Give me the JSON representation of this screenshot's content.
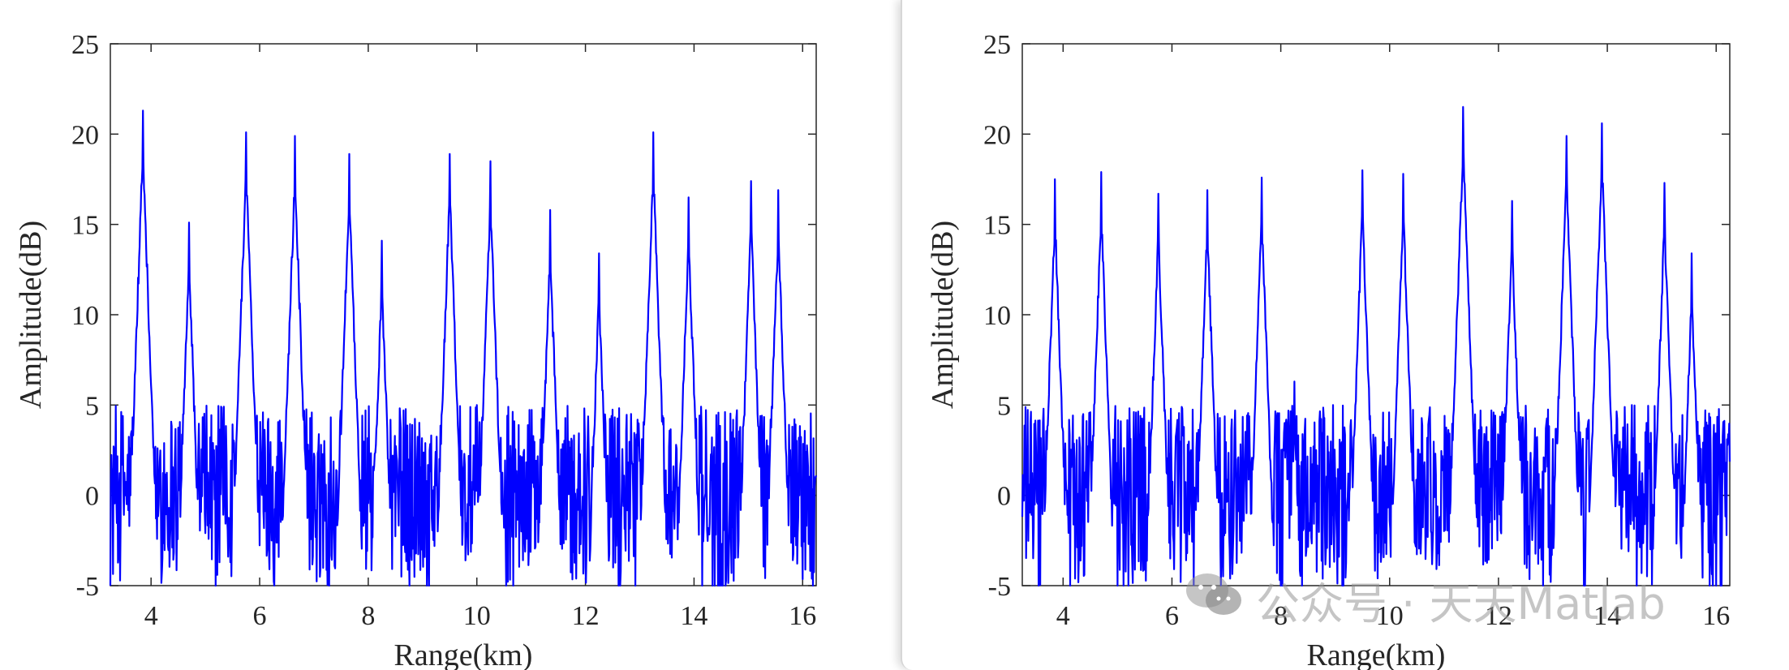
{
  "colors": {
    "line": "#0000ff",
    "axis": "#262626",
    "panel_border": "#d6d6d6"
  },
  "watermark": {
    "text": "公众号 · 天天Matlab",
    "icon": "wechat-icon"
  },
  "chart_data": [
    {
      "type": "line",
      "xlabel": "Range(km)",
      "ylabel": "Amplitude(dB)",
      "xlim": [
        3.25,
        16.25
      ],
      "ylim": [
        -5,
        25
      ],
      "xticks": [
        4,
        6,
        8,
        10,
        12,
        14,
        16
      ],
      "yticks": [
        -5,
        0,
        5,
        10,
        15,
        20,
        25
      ],
      "grid": false,
      "series": [
        {
          "noise_floor_db": [
            -5,
            5
          ],
          "peaks": [
            {
              "x": 3.85,
              "y": 21.3
            },
            {
              "x": 4.7,
              "y": 15.1
            },
            {
              "x": 5.75,
              "y": 20.1
            },
            {
              "x": 6.65,
              "y": 19.9
            },
            {
              "x": 7.65,
              "y": 18.9
            },
            {
              "x": 8.25,
              "y": 14.1
            },
            {
              "x": 9.5,
              "y": 18.9
            },
            {
              "x": 10.25,
              "y": 18.5
            },
            {
              "x": 11.35,
              "y": 15.8
            },
            {
              "x": 12.25,
              "y": 13.4
            },
            {
              "x": 13.25,
              "y": 20.1
            },
            {
              "x": 13.9,
              "y": 16.5
            },
            {
              "x": 15.05,
              "y": 17.4
            },
            {
              "x": 15.55,
              "y": 16.9
            }
          ]
        }
      ]
    },
    {
      "type": "line",
      "xlabel": "Range(km)",
      "ylabel": "Amplitude(dB)",
      "xlim": [
        3.25,
        16.25
      ],
      "ylim": [
        -5,
        25
      ],
      "xticks": [
        4,
        6,
        8,
        10,
        12,
        14,
        16
      ],
      "yticks": [
        -5,
        0,
        5,
        10,
        15,
        20,
        25
      ],
      "grid": false,
      "series": [
        {
          "noise_floor_db": [
            -5,
            5
          ],
          "peaks": [
            {
              "x": 3.85,
              "y": 17.5
            },
            {
              "x": 4.7,
              "y": 17.9
            },
            {
              "x": 5.75,
              "y": 16.7
            },
            {
              "x": 6.65,
              "y": 16.9
            },
            {
              "x": 7.65,
              "y": 17.6
            },
            {
              "x": 8.25,
              "y": 6.3
            },
            {
              "x": 9.5,
              "y": 18.0
            },
            {
              "x": 10.25,
              "y": 17.8
            },
            {
              "x": 11.35,
              "y": 21.5
            },
            {
              "x": 12.25,
              "y": 16.3
            },
            {
              "x": 13.25,
              "y": 19.9
            },
            {
              "x": 13.9,
              "y": 20.6
            },
            {
              "x": 15.05,
              "y": 17.3
            },
            {
              "x": 15.55,
              "y": 13.4
            }
          ]
        }
      ]
    }
  ]
}
